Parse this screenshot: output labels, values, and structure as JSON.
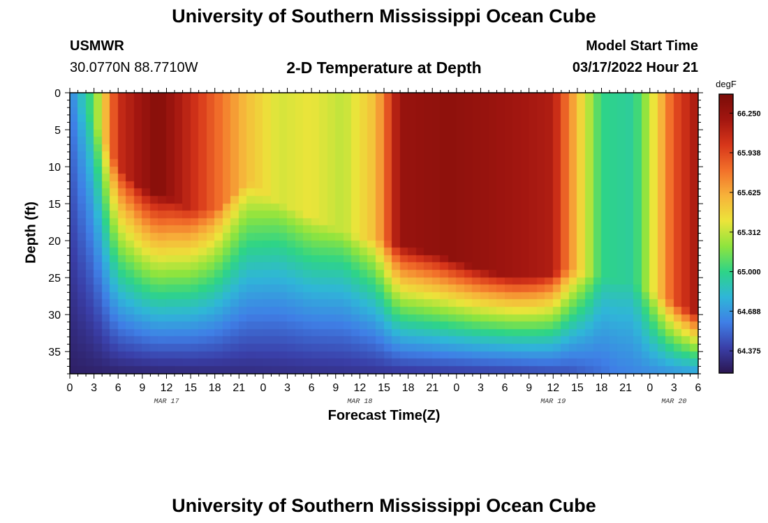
{
  "header": {
    "title": "University of Southern Mississippi Ocean Cube",
    "station": "USMWR",
    "coords": "30.0770N  88.7710W",
    "subtitle": "2-D Temperature at Depth",
    "model_label": "Model Start Time",
    "model_time": "03/17/2022 Hour 21"
  },
  "footer": {
    "title": "University of Southern Mississippi Ocean Cube"
  },
  "chart_data": {
    "type": "heatmap",
    "title": "2-D Temperature at Depth",
    "xlabel": "Forecast Time(Z)",
    "ylabel": "Depth (ft)",
    "x_range_hours": [
      0,
      78
    ],
    "ylim": [
      0,
      38
    ],
    "y_ticks": [
      "0",
      "5",
      "10",
      "15",
      "20",
      "25",
      "30",
      "35"
    ],
    "x_tick_labels": [
      "0",
      "3",
      "6",
      "9",
      "12",
      "15",
      "18",
      "21",
      "0",
      "3",
      "6",
      "9",
      "12",
      "15",
      "18",
      "21",
      "0",
      "3",
      "6",
      "9",
      "12",
      "15",
      "18",
      "21",
      "0",
      "3",
      "6"
    ],
    "date_labels": [
      {
        "label": "MAR 17",
        "hour": 12
      },
      {
        "label": "MAR 18",
        "hour": 36
      },
      {
        "label": "MAR 19",
        "hour": 60
      },
      {
        "label": "MAR 20",
        "hour": 75
      }
    ],
    "colorbar": {
      "unit": "degF",
      "ticks": [
        "66.250",
        "65.938",
        "65.625",
        "65.312",
        "65.000",
        "64.688",
        "64.375"
      ],
      "range": [
        64.2,
        66.4
      ],
      "colors": [
        "#2b1650",
        "#3a3fa8",
        "#3f7fe6",
        "#2fb6d8",
        "#2ed487",
        "#8ee43e",
        "#ece43a",
        "#f7b23a",
        "#f2702a",
        "#d7361a",
        "#a21610",
        "#7a0c08"
      ]
    },
    "warm_layer_bottom_depth_ft": [
      {
        "hour": 0,
        "depth": 0
      },
      {
        "hour": 3,
        "depth": 4
      },
      {
        "hour": 6,
        "depth": 10
      },
      {
        "hour": 9,
        "depth": 13
      },
      {
        "hour": 12,
        "depth": 14
      },
      {
        "hour": 15,
        "depth": 16
      },
      {
        "hour": 18,
        "depth": 16
      },
      {
        "hour": 22,
        "depth": 12
      },
      {
        "hour": 26,
        "depth": 15
      },
      {
        "hour": 30,
        "depth": 17
      },
      {
        "hour": 34,
        "depth": 19
      },
      {
        "hour": 38,
        "depth": 20
      },
      {
        "hour": 42,
        "depth": 21
      },
      {
        "hour": 46,
        "depth": 22
      },
      {
        "hour": 51,
        "depth": 24
      },
      {
        "hour": 55,
        "depth": 25
      },
      {
        "hour": 58,
        "depth": 25
      },
      {
        "hour": 62,
        "depth": 24
      },
      {
        "hour": 66,
        "depth": 25
      },
      {
        "hour": 70,
        "depth": 26
      },
      {
        "hour": 74,
        "depth": 28
      },
      {
        "hour": 78,
        "depth": 30
      }
    ],
    "core_temperature_degF": [
      {
        "hour": 0,
        "temp": 64.6
      },
      {
        "hour": 3,
        "temp": 65.1
      },
      {
        "hour": 6,
        "temp": 66.05
      },
      {
        "hour": 11,
        "temp": 66.35
      },
      {
        "hour": 16,
        "temp": 66.0
      },
      {
        "hour": 22,
        "temp": 65.55
      },
      {
        "hour": 26,
        "temp": 65.35
      },
      {
        "hour": 30,
        "temp": 65.4
      },
      {
        "hour": 34,
        "temp": 65.3
      },
      {
        "hour": 38,
        "temp": 65.55
      },
      {
        "hour": 41,
        "temp": 66.25
      },
      {
        "hour": 47,
        "temp": 66.3
      },
      {
        "hour": 52,
        "temp": 66.25
      },
      {
        "hour": 56,
        "temp": 66.2
      },
      {
        "hour": 60,
        "temp": 66.15
      },
      {
        "hour": 63,
        "temp": 65.55
      },
      {
        "hour": 66,
        "temp": 65.0
      },
      {
        "hour": 70,
        "temp": 64.95
      },
      {
        "hour": 72,
        "temp": 65.3
      },
      {
        "hour": 75,
        "temp": 65.9
      },
      {
        "hour": 78,
        "temp": 66.2
      }
    ],
    "bottom_temperature_degF": [
      {
        "hour": 0,
        "temp": 64.25
      },
      {
        "hour": 20,
        "temp": 64.3
      },
      {
        "hour": 40,
        "temp": 64.35
      },
      {
        "hour": 55,
        "temp": 64.4
      },
      {
        "hour": 62,
        "temp": 64.45
      },
      {
        "hour": 68,
        "temp": 64.6
      },
      {
        "hour": 78,
        "temp": 64.7
      }
    ]
  }
}
